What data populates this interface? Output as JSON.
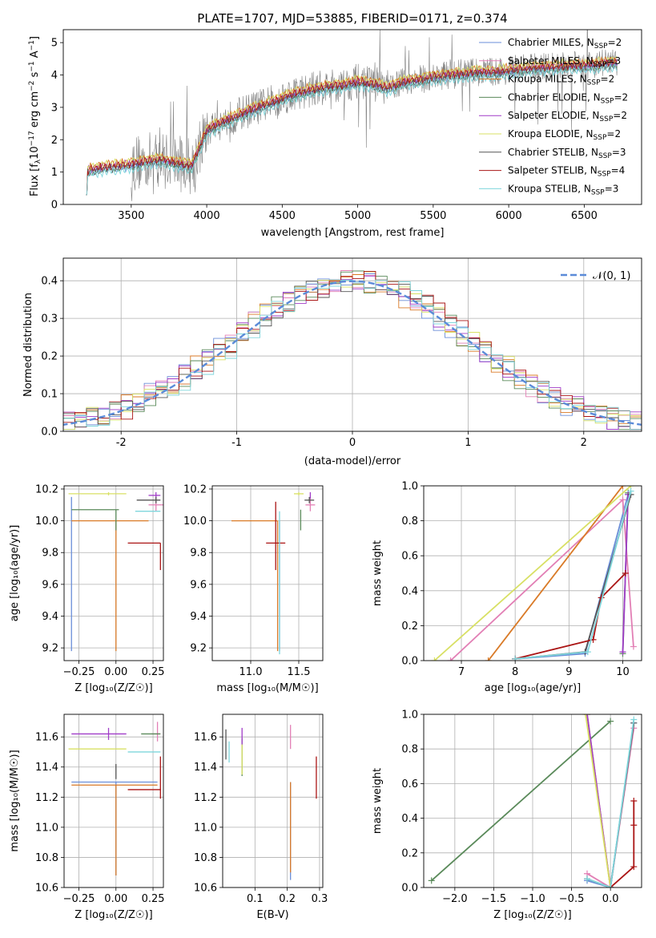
{
  "colors": {
    "Chabrier MILES": "#6a8ed8",
    "Salpeter MILES": "#e27fb5",
    "Kroupa MILES": "#d97a27",
    "Chabrier ELODIE": "#5a8a5a",
    "Salpeter ELODIE": "#a03cc8",
    "Kroupa ELODIE": "#d8e064",
    "Chabrier STELIB": "#555555",
    "Salpeter STELIB": "#aa1414",
    "Kroupa STELIB": "#7fd6dc",
    "data": "#808080",
    "normal": "#5b8bd8"
  },
  "chart_data": [
    {
      "id": "spectrum",
      "type": "line",
      "title": "PLATE=1707, MJD=53885, FIBERID=0171, z=0.374",
      "xlabel": "wavelength [Angstrom, rest frame]",
      "ylabel_main": "Flux [f",
      "ylabel_sub": "λ",
      "ylabel_rest": "10",
      "ylabel_exp": "−17",
      "ylabel_units": " erg cm",
      "ylabel_unit_exp1": "−2",
      "ylabel_s": " s",
      "ylabel_unit_exp2": "−1",
      "ylabel_A": " A",
      "ylabel_unit_exp3": "−1",
      "ylabel_close": "]",
      "xlim": [
        3050,
        6880
      ],
      "ylim": [
        0,
        5.4
      ],
      "xticks": [
        3500,
        4000,
        4500,
        5000,
        5500,
        6000,
        6500
      ],
      "yticks": [
        0,
        1,
        2,
        3,
        4,
        5
      ],
      "model_shape_x": [
        3200,
        3300,
        3400,
        3500,
        3600,
        3700,
        3800,
        3900,
        4000,
        4100,
        4200,
        4300,
        4400,
        4500,
        4600,
        4700,
        4800,
        4900,
        5000,
        5100,
        5200,
        5300,
        5400,
        5500,
        5600,
        5700,
        5800,
        5900,
        6000,
        6100,
        6200,
        6300,
        6400,
        6500,
        6600,
        6700
      ],
      "model_shape_y": [
        1.05,
        1.15,
        1.2,
        1.25,
        1.35,
        1.4,
        1.3,
        1.2,
        2.3,
        2.55,
        2.75,
        2.95,
        3.1,
        3.3,
        3.45,
        3.55,
        3.65,
        3.7,
        3.8,
        3.75,
        3.6,
        3.8,
        3.85,
        3.95,
        4.0,
        4.05,
        4.1,
        4.1,
        4.15,
        4.2,
        4.25,
        4.25,
        4.3,
        4.3,
        4.35,
        4.4
      ],
      "legend": [
        {
          "label": "Chabrier MILES, N",
          "sub": "SSP",
          "tail": "=2"
        },
        {
          "label": "Salpeter MILES, N",
          "sub": "SSP",
          "tail": "=3"
        },
        {
          "label": "Kroupa MILES, N",
          "sub": "SSP",
          "tail": "=2"
        },
        {
          "label": "Chabrier ELODIE, N",
          "sub": "SSP",
          "tail": "=2"
        },
        {
          "label": "Salpeter ELODIE, N",
          "sub": "SSP",
          "tail": "=2"
        },
        {
          "label": "Kroupa ELODIE, N",
          "sub": "SSP",
          "tail": "=2"
        },
        {
          "label": "Chabrier STELIB, N",
          "sub": "SSP",
          "tail": "=3"
        },
        {
          "label": "Salpeter STELIB, N",
          "sub": "SSP",
          "tail": "=4"
        },
        {
          "label": "Kroupa STELIB, N",
          "sub": "SSP",
          "tail": "=3"
        }
      ]
    },
    {
      "id": "residual-histogram",
      "type": "line",
      "xlabel": "(data-model)/error",
      "ylabel": "Normed distribution",
      "xlim": [
        -2.5,
        2.5
      ],
      "ylim": [
        0,
        0.46
      ],
      "xticks": [
        -2,
        -1,
        0,
        1,
        2
      ],
      "yticks": [
        0.0,
        0.1,
        0.2,
        0.3,
        0.4
      ],
      "legend_label": "𝒩(0, 1)",
      "bin_width": 0.1
    },
    {
      "id": "age-vs-Z",
      "type": "scatter",
      "xlabel": "Z [log₁₀(Z/Z☉)]",
      "ylabel": "age  [log₁₀(age/yr)]",
      "xlim": [
        -0.35,
        0.32
      ],
      "ylim": [
        9.12,
        10.22
      ],
      "xticks": [
        -0.25,
        0.0,
        0.25
      ],
      "xticklabels": [
        "−0.25",
        "0.00",
        "0.25"
      ],
      "yticks": [
        9.2,
        9.4,
        9.6,
        9.8,
        10.0,
        10.2
      ],
      "points": [
        {
          "model": "Chabrier MILES",
          "x": -0.3,
          "xerr": [
            0,
            0.0
          ],
          "y": 9.18,
          "yerr": [
            0,
            0.97
          ]
        },
        {
          "model": "Salpeter MILES",
          "x": 0.27,
          "xerr": [
            0.05,
            0.05
          ],
          "y": 10.1,
          "yerr": [
            0.04,
            0.05
          ]
        },
        {
          "model": "Kroupa MILES",
          "x": 0.0,
          "xerr": [
            0.3,
            0.22
          ],
          "y": 10.0,
          "yerr": [
            0.82,
            0.0
          ]
        },
        {
          "model": "Chabrier ELODIE",
          "x": 0.0,
          "xerr": [
            0.3,
            0.02
          ],
          "y": 10.07,
          "yerr": [
            0.13,
            0.0
          ]
        },
        {
          "model": "Salpeter ELODIE",
          "x": 0.27,
          "xerr": [
            0.05,
            0.03
          ],
          "y": 10.16,
          "yerr": [
            0.02,
            0.02
          ]
        },
        {
          "model": "Kroupa ELODIE",
          "x": -0.05,
          "xerr": [
            0.27,
            0.12
          ],
          "y": 10.17,
          "yerr": [
            0.01,
            0.01
          ]
        },
        {
          "model": "Chabrier STELIB",
          "x": 0.27,
          "xerr": [
            0.13,
            0.03
          ],
          "y": 10.13,
          "yerr": [
            0.02,
            0.02
          ]
        },
        {
          "model": "Salpeter STELIB",
          "x": 0.3,
          "xerr": [
            0.22,
            0.0
          ],
          "y": 9.86,
          "yerr": [
            0.17,
            0.0
          ]
        },
        {
          "model": "Kroupa STELIB",
          "x": 0.28,
          "xerr": [
            0.15,
            0.02
          ],
          "y": 10.06,
          "yerr": [
            0.0,
            0.0
          ]
        }
      ]
    },
    {
      "id": "age-vs-mass",
      "type": "scatter",
      "xlabel": "mass [log₁₀(M/M☉)]",
      "ylabel": "",
      "xlim": [
        10.6,
        11.75
      ],
      "ylim": [
        9.12,
        10.22
      ],
      "xticks": [
        11.0,
        11.5
      ],
      "xticklabels": [
        "11.0",
        "11.5"
      ],
      "yticks": [
        9.2,
        9.4,
        9.6,
        9.8,
        10.0,
        10.2
      ],
      "points": [
        {
          "model": "Chabrier MILES",
          "x": 11.3,
          "xerr": [
            0.0,
            0.0
          ],
          "y": 10.0,
          "yerr": [
            0.82,
            0.0
          ]
        },
        {
          "model": "Kroupa MILES",
          "x": 11.28,
          "xerr": [
            0.48,
            0.0
          ],
          "y": 10.0,
          "yerr": [
            0.82,
            0.0
          ]
        },
        {
          "model": "Salpeter MILES",
          "x": 11.62,
          "xerr": [
            0.05,
            0.05
          ],
          "y": 10.1,
          "yerr": [
            0.04,
            0.05
          ]
        },
        {
          "model": "Chabrier ELODIE",
          "x": 11.52,
          "xerr": [
            0.0,
            0.0
          ],
          "y": 10.07,
          "yerr": [
            0.13,
            0.0
          ]
        },
        {
          "model": "Salpeter ELODIE",
          "x": 11.62,
          "xerr": [
            0.0,
            0.0
          ],
          "y": 10.16,
          "yerr": [
            0.02,
            0.02
          ]
        },
        {
          "model": "Kroupa ELODIE",
          "x": 11.5,
          "xerr": [
            0.05,
            0.05
          ],
          "y": 10.17,
          "yerr": [
            0.01,
            0.01
          ]
        },
        {
          "model": "Chabrier STELIB",
          "x": 11.61,
          "xerr": [
            0.05,
            0.05
          ],
          "y": 10.13,
          "yerr": [
            0.02,
            0.02
          ]
        },
        {
          "model": "Salpeter STELIB",
          "x": 11.26,
          "xerr": [
            0.1,
            0.1
          ],
          "y": 9.86,
          "yerr": [
            0.17,
            0.26
          ]
        },
        {
          "model": "Kroupa STELIB",
          "x": 11.3,
          "xerr": [
            0.0,
            0.0
          ],
          "y": 10.06,
          "yerr": [
            0.9,
            0.0
          ]
        }
      ]
    },
    {
      "id": "mass-weight-vs-age",
      "type": "line",
      "xlabel": "age  [log₁₀(age/yr)]",
      "ylabel": "mass weight",
      "xlim": [
        6.3,
        10.35
      ],
      "ylim": [
        0,
        1
      ],
      "xticks": [
        7,
        8,
        9,
        10
      ],
      "yticks": [
        0.0,
        0.2,
        0.4,
        0.6,
        0.8,
        1.0
      ],
      "series": [
        {
          "model": "Chabrier MILES",
          "x": [
            8.0,
            9.3,
            10.1
          ],
          "y": [
            0.01,
            0.04,
            0.95
          ]
        },
        {
          "model": "Salpeter MILES",
          "x": [
            6.8,
            10.0,
            10.2
          ],
          "y": [
            0.0,
            0.92,
            0.08
          ]
        },
        {
          "model": "Kroupa MILES",
          "x": [
            7.5,
            10.0
          ],
          "y": [
            0.0,
            1.0
          ]
        },
        {
          "model": "Chabrier ELODIE",
          "x": [
            10.0,
            10.1
          ],
          "y": [
            0.04,
            0.96
          ]
        },
        {
          "model": "Salpeter ELODIE",
          "x": [
            10.0,
            10.1
          ],
          "y": [
            0.05,
            0.95
          ]
        },
        {
          "model": "Kroupa ELODIE",
          "x": [
            6.5,
            10.15
          ],
          "y": [
            0.0,
            1.0
          ]
        },
        {
          "model": "Chabrier STELIB",
          "x": [
            8.0,
            9.3,
            10.15
          ],
          "y": [
            0.01,
            0.05,
            0.95
          ]
        },
        {
          "model": "Salpeter STELIB",
          "x": [
            8.0,
            9.45,
            9.6,
            10.05
          ],
          "y": [
            0.01,
            0.12,
            0.36,
            0.5
          ]
        },
        {
          "model": "Kroupa STELIB",
          "x": [
            8.0,
            9.35,
            10.15
          ],
          "y": [
            0.01,
            0.05,
            0.97
          ]
        }
      ]
    },
    {
      "id": "mass-vs-Z",
      "type": "scatter",
      "xlabel": "Z [log₁₀(Z/Z☉)]",
      "ylabel": "mass [log₁₀(M/M☉)]",
      "xlim": [
        -0.35,
        0.32
      ],
      "ylim": [
        10.6,
        11.75
      ],
      "xticks": [
        -0.25,
        0.0,
        0.25
      ],
      "xticklabels": [
        "−0.25",
        "0.00",
        "0.25"
      ],
      "yticks": [
        10.6,
        10.8,
        11.0,
        11.2,
        11.4,
        11.6
      ],
      "points": [
        {
          "model": "Chabrier MILES",
          "x": 0.0,
          "xerr": [
            0.3,
            0.28
          ],
          "y": 11.3,
          "yerr": [
            0.62,
            0.0
          ]
        },
        {
          "model": "Salpeter MILES",
          "x": 0.28,
          "xerr": [
            0.04,
            0.02
          ],
          "y": 11.62,
          "yerr": [
            0.05,
            0.08
          ]
        },
        {
          "model": "Kroupa MILES",
          "x": 0.0,
          "xerr": [
            0.3,
            0.28
          ],
          "y": 11.28,
          "yerr": [
            0.6,
            0.0
          ]
        },
        {
          "model": "Chabrier ELODIE",
          "x": 0.27,
          "xerr": [
            0.1,
            0.03
          ],
          "y": 11.62,
          "yerr": [
            0.0,
            0.0
          ]
        },
        {
          "model": "Salpeter ELODIE",
          "x": -0.05,
          "xerr": [
            0.25,
            0.12
          ],
          "y": 11.62,
          "yerr": [
            0.04,
            0.04
          ]
        },
        {
          "model": "Kroupa ELODIE",
          "x": -0.05,
          "xerr": [
            0.27,
            0.12
          ],
          "y": 11.52,
          "yerr": [
            0.0,
            0.0
          ]
        },
        {
          "model": "Chabrier STELIB",
          "x": 0.0,
          "xerr": [
            0.0,
            0.0
          ],
          "y": 11.42,
          "yerr": [
            0.1,
            0.0
          ]
        },
        {
          "model": "Salpeter STELIB",
          "x": 0.3,
          "xerr": [
            0.22,
            0.0
          ],
          "y": 11.25,
          "yerr": [
            0.06,
            0.22
          ]
        },
        {
          "model": "Kroupa STELIB",
          "x": 0.08,
          "xerr": [
            0.0,
            0.22
          ],
          "y": 11.5,
          "yerr": [
            0.0,
            0.0
          ]
        }
      ]
    },
    {
      "id": "mass-vs-EBV",
      "type": "scatter",
      "xlabel": "E(B-V)",
      "ylabel": "",
      "xlim": [
        0.0,
        0.31
      ],
      "ylim": [
        10.6,
        11.75
      ],
      "xticks": [
        0.1,
        0.2,
        0.3
      ],
      "xticklabels": [
        "0.1",
        "0.2",
        "0.3"
      ],
      "yticks": [
        10.6,
        10.8,
        11.0,
        11.2,
        11.4,
        11.6
      ],
      "points": [
        {
          "model": "Chabrier MILES",
          "x": 0.21,
          "xerr": [
            0,
            0
          ],
          "y": 11.0,
          "yerr": [
            0.35,
            0.3
          ]
        },
        {
          "model": "Kroupa MILES",
          "x": 0.21,
          "xerr": [
            0,
            0
          ],
          "y": 11.0,
          "yerr": [
            0.3,
            0.3
          ]
        },
        {
          "model": "Salpeter MILES",
          "x": 0.21,
          "xerr": [
            0,
            0
          ],
          "y": 11.62,
          "yerr": [
            0.1,
            0.06
          ]
        },
        {
          "model": "Chabrier ELODIE",
          "x": 0.06,
          "xerr": [
            0,
            0
          ],
          "y": 11.44,
          "yerr": [
            0.1,
            0.15
          ]
        },
        {
          "model": "Salpeter ELODIE",
          "x": 0.06,
          "xerr": [
            0,
            0
          ],
          "y": 11.58,
          "yerr": [
            0.04,
            0.08
          ]
        },
        {
          "model": "Kroupa ELODIE",
          "x": 0.06,
          "xerr": [
            0,
            0
          ],
          "y": 11.5,
          "yerr": [
            0.15,
            0.05
          ]
        },
        {
          "model": "Chabrier STELIB",
          "x": 0.01,
          "xerr": [
            0,
            0
          ],
          "y": 11.55,
          "yerr": [
            0.1,
            0.1
          ]
        },
        {
          "model": "Salpeter STELIB",
          "x": 0.29,
          "xerr": [
            0,
            0
          ],
          "y": 11.33,
          "yerr": [
            0.14,
            0.14
          ]
        },
        {
          "model": "Kroupa STELIB",
          "x": 0.02,
          "xerr": [
            0,
            0
          ],
          "y": 11.5,
          "yerr": [
            0.07,
            0.07
          ]
        }
      ]
    },
    {
      "id": "mass-weight-vs-Z",
      "type": "line",
      "xlabel": "Z [log₁₀(Z/Z☉)]",
      "ylabel": "mass weight",
      "xlim": [
        -2.4,
        0.4
      ],
      "ylim": [
        0,
        1
      ],
      "xticks": [
        -2.0,
        -1.5,
        -1.0,
        -0.5,
        0.0
      ],
      "xticklabels": [
        "−2.0",
        "−1.5",
        "−1.0",
        "−0.5",
        "0.0"
      ],
      "yticks": [
        0.0,
        0.2,
        0.4,
        0.6,
        0.8,
        1.0
      ],
      "series": [
        {
          "model": "Chabrier MILES",
          "x": [
            -0.3,
            0.0,
            0.3
          ],
          "y": [
            0.04,
            0.0,
            0.95
          ]
        },
        {
          "model": "Salpeter MILES",
          "x": [
            -0.3,
            0.0,
            0.3
          ],
          "y": [
            0.08,
            0.0,
            0.92
          ]
        },
        {
          "model": "Kroupa MILES",
          "x": [
            -0.3,
            0.0
          ],
          "y": [
            1.0,
            0.0
          ]
        },
        {
          "model": "Chabrier ELODIE",
          "x": [
            -2.3,
            0.0
          ],
          "y": [
            0.04,
            0.96
          ]
        },
        {
          "model": "Salpeter ELODIE",
          "x": [
            -0.3,
            0.0
          ],
          "y": [
            1.0,
            0.0
          ]
        },
        {
          "model": "Kroupa ELODIE",
          "x": [
            -0.32,
            0.0
          ],
          "y": [
            1.0,
            0.0
          ]
        },
        {
          "model": "Chabrier STELIB",
          "x": [
            -0.3,
            0.0,
            0.3
          ],
          "y": [
            0.05,
            0.0,
            0.95
          ]
        },
        {
          "model": "Salpeter STELIB",
          "x": [
            0.0,
            0.3,
            0.3,
            0.3
          ],
          "y": [
            0.0,
            0.12,
            0.36,
            0.5
          ]
        },
        {
          "model": "Kroupa STELIB",
          "x": [
            -0.3,
            0.0,
            0.3
          ],
          "y": [
            0.05,
            0.0,
            0.97
          ]
        }
      ]
    }
  ]
}
